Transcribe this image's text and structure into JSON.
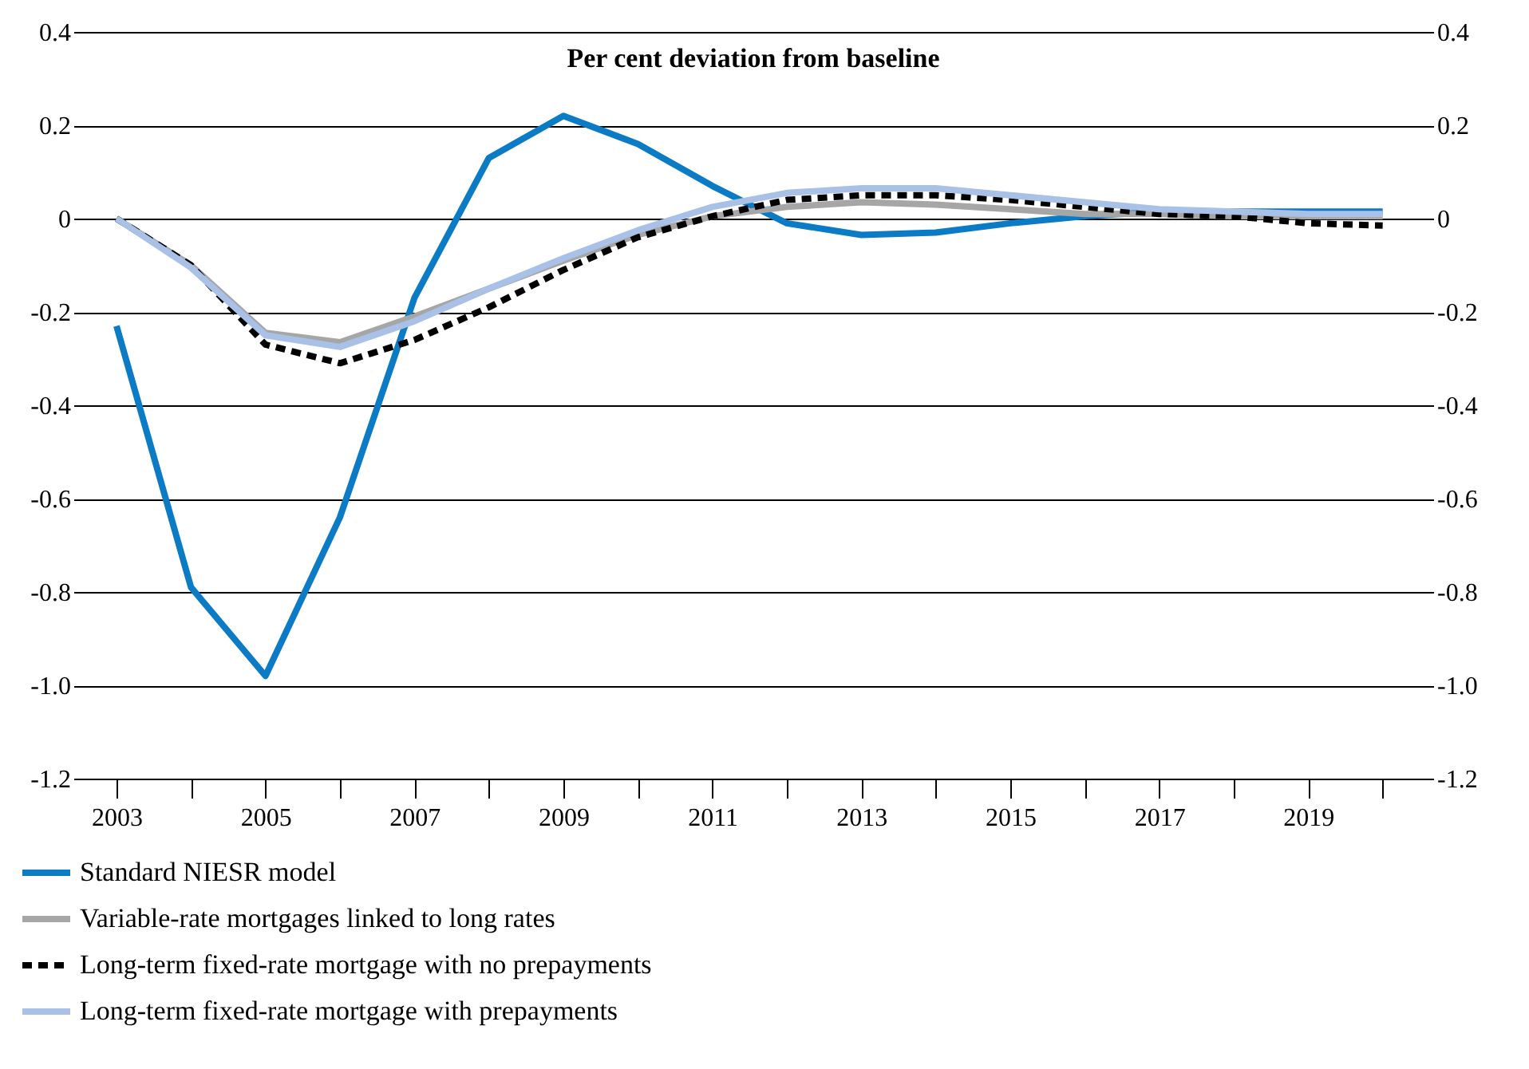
{
  "chart_data": {
    "type": "line",
    "title": "Per cent deviation from baseline",
    "x": [
      2003,
      2004,
      2005,
      2006,
      2007,
      2008,
      2009,
      2010,
      2011,
      2012,
      2013,
      2014,
      2015,
      2016,
      2017,
      2018,
      2019,
      2020
    ],
    "xlim": [
      2002.55,
      2020.55
    ],
    "xticks": [
      2003,
      {
        "value": 2004,
        "label": null
      },
      2005,
      {
        "value": 2006,
        "label": null
      },
      2007,
      {
        "value": 2008,
        "label": null
      },
      2009,
      {
        "value": 2010,
        "label": null
      },
      2011,
      {
        "value": 2012,
        "label": null
      },
      2013,
      {
        "value": 2014,
        "label": null
      },
      2015,
      {
        "value": 2016,
        "label": null
      },
      2017,
      {
        "value": 2018,
        "label": null
      },
      2019,
      {
        "value": 2020,
        "label": null
      }
    ],
    "ylim": [
      -1.2,
      0.4
    ],
    "yticks": [
      {
        "value": -1.2,
        "label": "-1.2"
      },
      {
        "value": -1.0,
        "label": "-1.0"
      },
      {
        "value": -0.8,
        "label": "-0.8"
      },
      {
        "value": -0.6,
        "label": "-0.6"
      },
      {
        "value": -0.4,
        "label": "-0.4"
      },
      {
        "value": -0.2,
        "label": "-0.2"
      },
      0,
      0.2,
      0.4
    ],
    "y2lim": [
      -1.2,
      0.4
    ],
    "y2ticks": [
      {
        "value": -1.2,
        "label": "-1.2"
      },
      {
        "value": -1.0,
        "label": "-1.0"
      },
      {
        "value": -0.8,
        "label": "-0.8"
      },
      {
        "value": -0.6,
        "label": "-0.6"
      },
      {
        "value": -0.4,
        "label": "-0.4"
      },
      {
        "value": -0.2,
        "label": "-0.2"
      },
      0,
      0.2,
      0.4
    ],
    "grid": "y",
    "legend": "bottom",
    "series": [
      {
        "name": "Standard NIESR model",
        "color": "#0a7bc4",
        "line_style": "solid",
        "values": [
          -0.23,
          -0.79,
          -0.98,
          -0.64,
          -0.17,
          0.13,
          0.22,
          0.16,
          0.07,
          -0.01,
          -0.035,
          -0.03,
          -0.01,
          0.005,
          0.015,
          0.015,
          0.015,
          0.015
        ]
      },
      {
        "name": "Variable-rate mortgages linked to long rates",
        "color": "#a6a6a6",
        "line_style": "solid",
        "values": [
          0,
          -0.1,
          -0.245,
          -0.265,
          -0.21,
          -0.15,
          -0.09,
          -0.035,
          0.005,
          0.025,
          0.035,
          0.03,
          0.02,
          0.01,
          0.01,
          0.005,
          0.005,
          0.005
        ]
      },
      {
        "name": "Long-term fixed-rate mortgage with no prepayments",
        "color": "#000000",
        "line_style": "dashed",
        "values": [
          0,
          -0.1,
          -0.27,
          -0.31,
          -0.26,
          -0.19,
          -0.11,
          -0.04,
          0.005,
          0.04,
          0.05,
          0.05,
          0.04,
          0.025,
          0.01,
          0.005,
          -0.01,
          -0.015
        ]
      },
      {
        "name": "Long-term fixed-rate mortgage with prepayments",
        "color": "#a9c1e6",
        "line_style": "solid",
        "values": [
          0,
          -0.105,
          -0.25,
          -0.275,
          -0.22,
          -0.15,
          -0.085,
          -0.025,
          0.025,
          0.055,
          0.065,
          0.065,
          0.05,
          0.035,
          0.02,
          0.015,
          0.01,
          0.01
        ]
      }
    ]
  }
}
